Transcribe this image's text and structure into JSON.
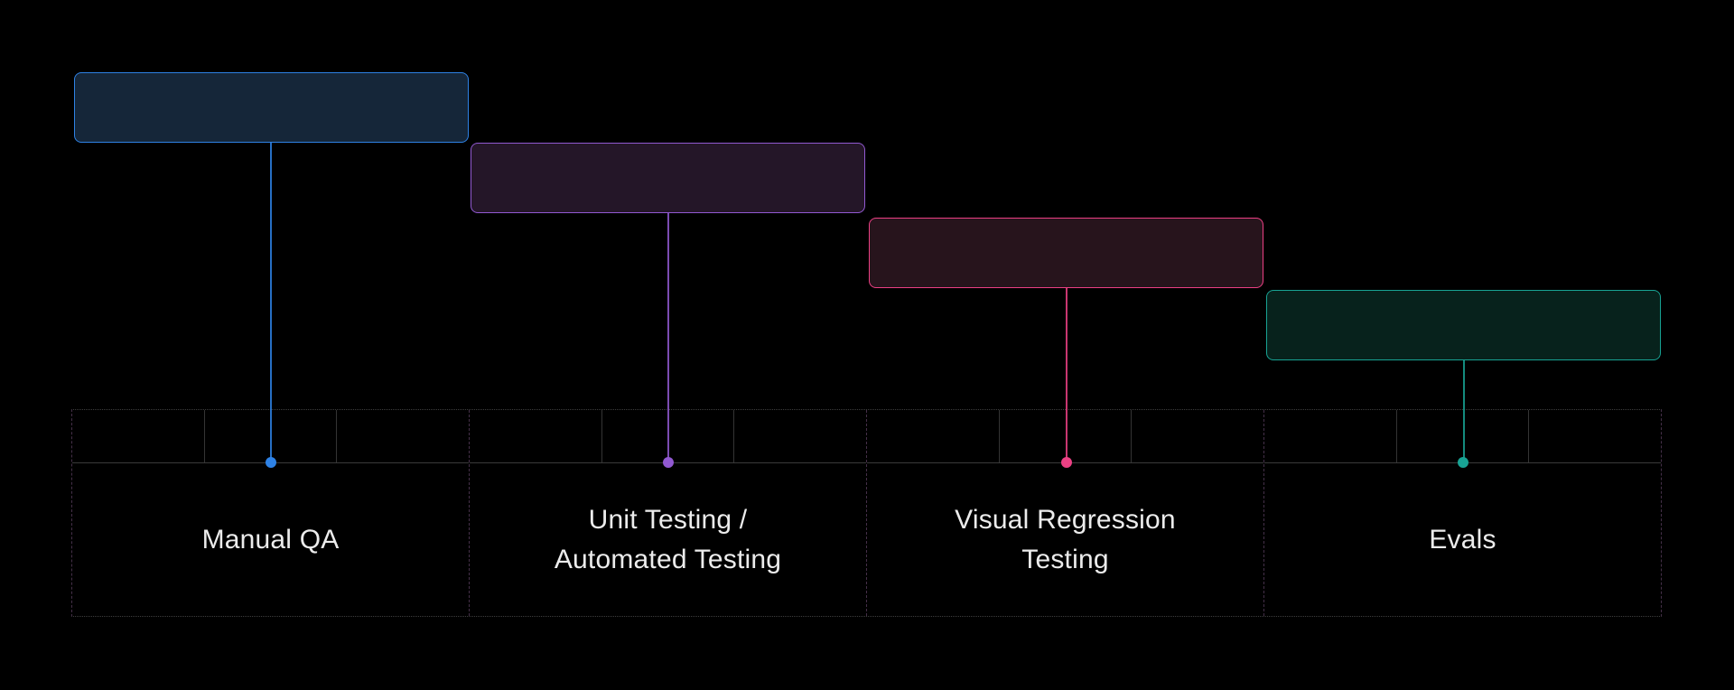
{
  "diagram": {
    "background": "#000000",
    "text_color": "#ececec",
    "grid": {
      "columns": 4,
      "ticks_per_column": 3,
      "tick_divider_color": "#343434",
      "ruler_baseline_color": "#3a3a3a",
      "outer_dotted_border_color": "#3e3e3e",
      "column_divider_color": "#453049"
    },
    "phases": [
      {
        "label": "Manual QA",
        "accent": "#2e82e6",
        "fill": "#152639"
      },
      {
        "label": "Unit Testing /\nAutomated Testing",
        "accent": "#9159d1",
        "fill": "#241628"
      },
      {
        "label": "Visual Regression\nTesting",
        "accent": "#ec4084",
        "fill": "#27141c"
      },
      {
        "label": "Evals",
        "accent": "#18a394",
        "fill": "#07221c"
      }
    ]
  }
}
